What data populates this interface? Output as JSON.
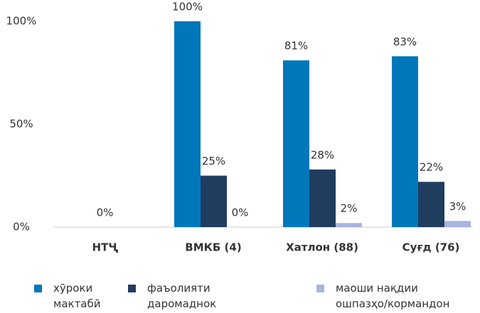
{
  "chart_data": {
    "type": "bar",
    "categories": [
      "НТҶ",
      "ВМКБ (4)",
      "Хатлон (88)",
      "Суғд (76)"
    ],
    "series": [
      {
        "name": "хӯроки мактабӣ",
        "color": "#0077bb",
        "values": [
          null,
          100,
          81,
          83
        ],
        "value_labels": [
          null,
          "100%",
          "81%",
          "83%"
        ]
      },
      {
        "name": "фаъолияти даромаднок",
        "color": "#1f3d5e",
        "values": [
          0,
          25,
          28,
          22
        ],
        "value_labels": [
          "0%",
          "25%",
          "28%",
          "22%"
        ]
      },
      {
        "name": "маоши нақдии ошпазҳо/кормандон",
        "color": "#a8b4e0",
        "values": [
          null,
          0,
          2,
          3
        ],
        "value_labels": [
          null,
          "0%",
          "2%",
          "3%"
        ]
      }
    ],
    "ylim": [
      0,
      100
    ],
    "yticks": [
      {
        "value": 0,
        "label": "0%"
      },
      {
        "value": 50,
        "label": "50%"
      },
      {
        "value": 100,
        "label": "100%"
      }
    ]
  }
}
